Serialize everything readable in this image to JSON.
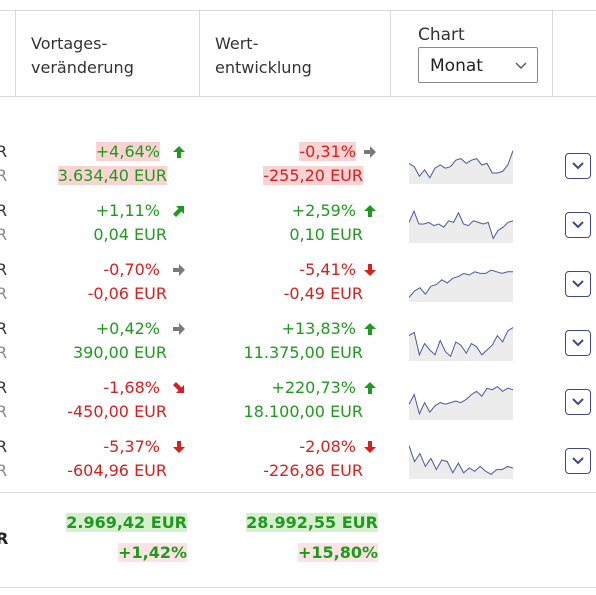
{
  "header": {
    "col1_line1": "Vortages-",
    "col1_line2": "veränderung",
    "col2_line1": "Wert-",
    "col2_line2": "entwicklung",
    "chart_label": "Chart",
    "chart_select_value": "Monat"
  },
  "rows": [
    {
      "cut_top": "R",
      "cut_bottom": "R",
      "day_pct": "+4,64%",
      "day_abs": "3.634,40 EUR",
      "day_trend": "up",
      "perf_pct": "-0,31%",
      "perf_abs": "-255,20 EUR",
      "perf_trend": "right"
    },
    {
      "cut_top": "R",
      "cut_bottom": "R",
      "day_pct": "+1,11%",
      "day_abs": "0,04 EUR",
      "day_trend": "up-right",
      "perf_pct": "+2,59%",
      "perf_abs": "0,10 EUR",
      "perf_trend": "up"
    },
    {
      "cut_top": "R",
      "cut_bottom": "R",
      "day_pct": "-0,70%",
      "day_abs": "-0,06 EUR",
      "day_trend": "right",
      "perf_pct": "-5,41%",
      "perf_abs": "-0,49 EUR",
      "perf_trend": "down"
    },
    {
      "cut_top": "R",
      "cut_bottom": "R",
      "day_pct": "+0,42%",
      "day_abs": "390,00 EUR",
      "day_trend": "right",
      "perf_pct": "+13,83%",
      "perf_abs": "11.375,00 EUR",
      "perf_trend": "up"
    },
    {
      "cut_top": "R",
      "cut_bottom": "R",
      "day_pct": "-1,68%",
      "day_abs": "-450,00 EUR",
      "day_trend": "down-right",
      "perf_pct": "+220,73%",
      "perf_abs": "18.100,00 EUR",
      "perf_trend": "up"
    },
    {
      "cut_top": "R",
      "cut_bottom": "R",
      "day_pct": "-5,37%",
      "day_abs": "-604,96 EUR",
      "day_trend": "down",
      "perf_pct": "-2,08%",
      "perf_abs": "-226,86 EUR",
      "perf_trend": "down"
    }
  ],
  "totals": {
    "cut": "R",
    "day_abs": "2.969,42 EUR",
    "day_pct": "+1,42%",
    "perf_abs": "28.992,55 EUR",
    "perf_pct": "+15,80%"
  },
  "colors": {
    "positive": "#1e9b1e",
    "negative": "#d61f1f",
    "neutral_arrow": "#7a7a7a",
    "button_border": "#3f4a82",
    "sparkline": "#4a5a9a"
  },
  "icons": {
    "trend_up": "arrow-up-icon",
    "trend_up_right": "arrow-up-right-icon",
    "trend_right": "arrow-right-icon",
    "trend_down_right": "arrow-down-right-icon",
    "trend_down": "arrow-down-icon",
    "expand": "chevron-down-icon",
    "select": "chevron-down-icon"
  }
}
